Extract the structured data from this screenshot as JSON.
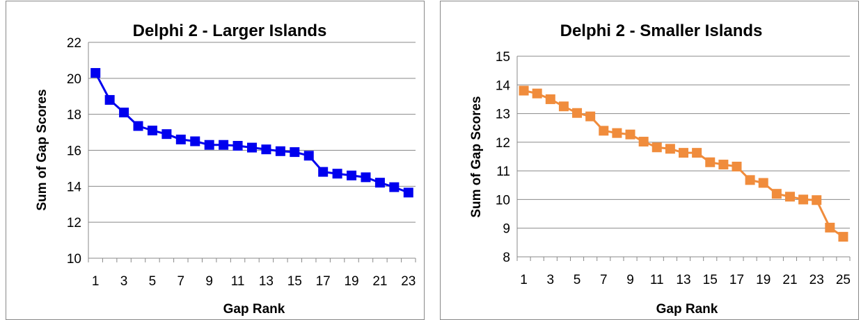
{
  "chart_data": [
    {
      "type": "line",
      "title": "Delphi 2 - Larger Islands",
      "xlabel": "Gap  Rank",
      "ylabel": "Sum of Gap Scores",
      "ylim": [
        10,
        22
      ],
      "yticks": [
        10,
        12,
        14,
        16,
        18,
        20,
        22
      ],
      "xlim": [
        1,
        23
      ],
      "xticks": [
        1,
        3,
        5,
        7,
        9,
        11,
        13,
        15,
        17,
        19,
        21,
        23
      ],
      "grid": "horizontal",
      "legend": "none",
      "color": "#0000ee",
      "marker": "square",
      "series": [
        {
          "x": [
            1,
            2,
            3,
            4,
            5,
            6,
            7,
            8,
            9,
            10,
            11,
            12,
            13,
            14,
            15,
            16,
            17,
            18,
            19,
            20,
            21,
            22,
            23
          ],
          "values": [
            20.3,
            18.8,
            18.1,
            17.35,
            17.1,
            16.9,
            16.6,
            16.5,
            16.3,
            16.3,
            16.25,
            16.15,
            16.05,
            15.95,
            15.9,
            15.7,
            14.8,
            14.7,
            14.6,
            14.5,
            14.2,
            13.95,
            13.65
          ]
        }
      ]
    },
    {
      "type": "line",
      "title": "Delphi 2 - Smaller Islands",
      "xlabel": "Gap Rank",
      "ylabel": "Sum of Gap Scores",
      "ylim": [
        8,
        15
      ],
      "yticks": [
        8,
        9,
        10,
        11,
        12,
        13,
        14,
        15
      ],
      "xlim": [
        1,
        25
      ],
      "xticks": [
        1,
        3,
        5,
        7,
        9,
        11,
        13,
        15,
        17,
        19,
        21,
        23,
        25
      ],
      "grid": "horizontal",
      "legend": "none",
      "color": "#f08c3c",
      "marker": "square",
      "series": [
        {
          "x": [
            1,
            2,
            3,
            4,
            5,
            6,
            7,
            8,
            9,
            10,
            11,
            12,
            13,
            14,
            15,
            16,
            17,
            18,
            19,
            20,
            21,
            22,
            23,
            24,
            25
          ],
          "values": [
            13.8,
            13.7,
            13.5,
            13.25,
            13.02,
            12.9,
            12.4,
            12.32,
            12.27,
            12.02,
            11.82,
            11.77,
            11.63,
            11.63,
            11.3,
            11.22,
            11.15,
            10.68,
            10.58,
            10.2,
            10.1,
            10.0,
            9.98,
            9.02,
            8.7
          ]
        }
      ]
    }
  ]
}
